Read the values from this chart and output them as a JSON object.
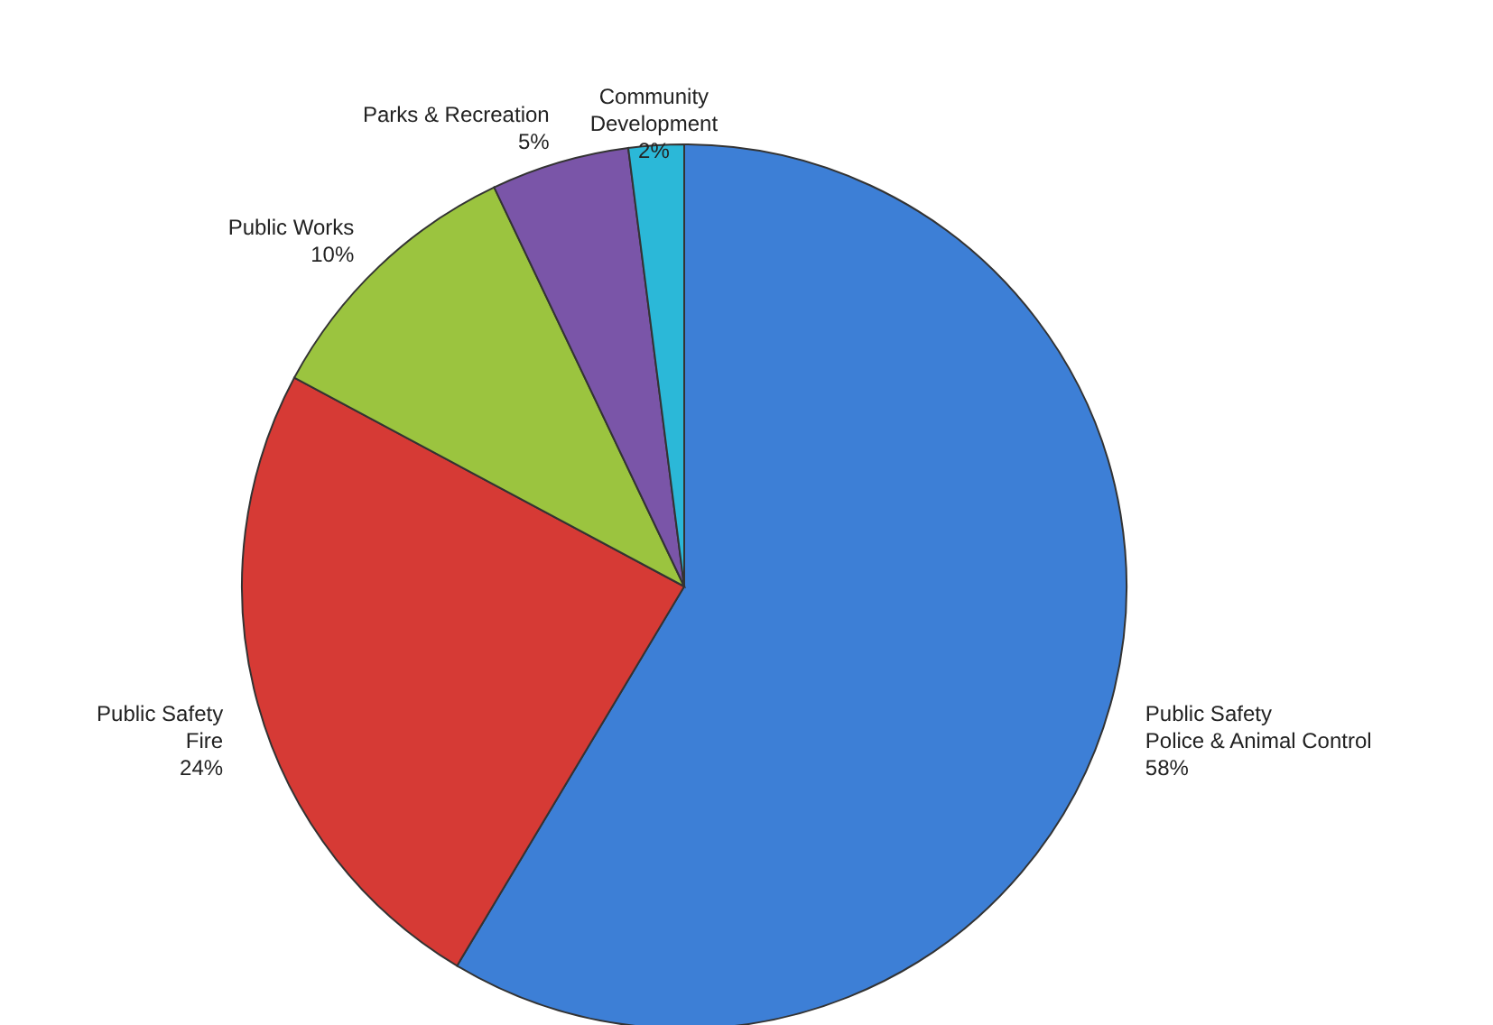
{
  "chart_data": {
    "type": "pie",
    "categories": [
      "Public Safety\nPolice & Animal Control",
      "Public Safety\nFire",
      "Public Works",
      "Parks & Recreation",
      "Community\nDevelopment"
    ],
    "values": [
      58,
      24,
      10,
      5,
      2
    ],
    "value_labels": [
      "58%",
      "24%",
      "10%",
      "5%",
      "2%"
    ],
    "colors": [
      "#3d7fd6",
      "#d63a35",
      "#9bc43f",
      "#7a55a8",
      "#2bb8d8"
    ],
    "legend": false
  }
}
